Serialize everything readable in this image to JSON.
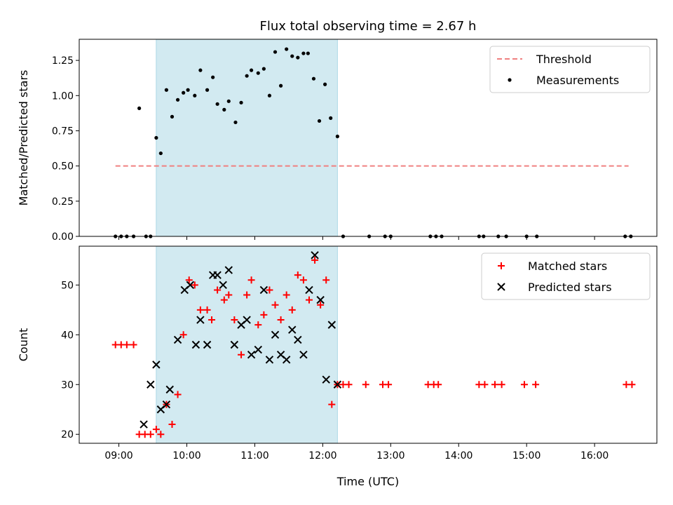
{
  "title": "Flux total observing time = 2.67 h",
  "colors": {
    "threshold": "#f08080",
    "shade": "#add8e6",
    "measurement": "#000000",
    "matched": "#ff0000",
    "predicted": "#000000"
  },
  "chart_data": [
    {
      "type": "scatter",
      "ylabel": "Matched/Predicted stars",
      "xlabel": "",
      "xlim": [
        "08:25",
        "16:55"
      ],
      "ylim": [
        0,
        1.4
      ],
      "yticks": [
        0,
        0.25,
        0.5,
        0.75,
        1.0,
        1.25
      ],
      "ytick_labels": [
        "0.00",
        "0.25",
        "0.50",
        "0.75",
        "1.00",
        "1.25"
      ],
      "shaded_interval": [
        "09:33",
        "12:13"
      ],
      "threshold": {
        "name": "Threshold",
        "y": 0.5,
        "x_start": "08:57",
        "x_end": "16:30"
      },
      "legend": {
        "placement": "top-right",
        "entries": [
          "Threshold",
          "Measurements"
        ]
      },
      "series": [
        {
          "name": "Measurements",
          "x": [
            "08:57",
            "09:02",
            "09:07",
            "09:13",
            "09:24",
            "09:28",
            "09:18",
            "09:33",
            "09:37",
            "09:42",
            "09:47",
            "09:52",
            "09:57",
            "10:01",
            "10:07",
            "10:12",
            "10:18",
            "10:23",
            "10:27",
            "10:33",
            "10:37",
            "10:43",
            "10:48",
            "10:53",
            "10:57",
            "11:03",
            "11:08",
            "11:13",
            "11:18",
            "11:23",
            "11:28",
            "11:33",
            "11:38",
            "11:43",
            "11:47",
            "11:52",
            "11:57",
            "12:02",
            "12:07",
            "12:13",
            "12:18",
            "12:41",
            "12:55",
            "13:00",
            "13:35",
            "13:40",
            "13:45",
            "14:18",
            "14:22",
            "14:35",
            "14:42",
            "15:00",
            "15:09",
            "16:27",
            "16:32"
          ],
          "y": [
            0,
            0,
            0,
            0,
            0,
            0,
            0.91,
            0.7,
            0.59,
            1.04,
            0.85,
            0.97,
            1.02,
            1.04,
            1.0,
            1.18,
            1.04,
            1.13,
            0.94,
            0.9,
            0.96,
            0.81,
            0.95,
            1.14,
            1.18,
            1.16,
            1.19,
            1.0,
            1.31,
            1.07,
            1.33,
            1.28,
            1.27,
            1.3,
            1.3,
            1.12,
            0.82,
            1.08,
            0.84,
            0.71,
            0,
            0,
            0,
            0,
            0,
            0,
            0,
            0,
            0,
            0,
            0,
            0,
            0,
            0,
            0
          ]
        }
      ]
    },
    {
      "type": "scatter",
      "ylabel": "Count",
      "xlabel": "Time (UTC)",
      "xlim": [
        "08:25",
        "16:55"
      ],
      "ylim": [
        18.2,
        57.8
      ],
      "yticks": [
        20,
        30,
        40,
        50
      ],
      "ytick_labels": [
        "20",
        "30",
        "40",
        "50"
      ],
      "xticks": [
        "09:00",
        "10:00",
        "11:00",
        "12:00",
        "13:00",
        "14:00",
        "15:00",
        "16:00"
      ],
      "xtick_labels": [
        "09:00",
        "10:00",
        "11:00",
        "12:00",
        "13:00",
        "14:00",
        "15:00",
        "16:00"
      ],
      "shaded_interval": [
        "09:33",
        "12:13"
      ],
      "legend": {
        "placement": "top-right",
        "entries": [
          "Matched stars",
          "Predicted stars"
        ]
      },
      "series": [
        {
          "name": "Matched stars",
          "x": [
            "08:57",
            "09:02",
            "09:07",
            "09:13",
            "09:18",
            "09:23",
            "09:28",
            "09:33",
            "09:37",
            "09:42",
            "09:47",
            "09:52",
            "09:57",
            "10:02",
            "10:07",
            "10:12",
            "10:18",
            "10:22",
            "10:27",
            "10:33",
            "10:37",
            "10:42",
            "10:48",
            "10:53",
            "10:57",
            "11:03",
            "11:08",
            "11:13",
            "11:18",
            "11:23",
            "11:28",
            "11:33",
            "11:38",
            "11:43",
            "11:48",
            "11:53",
            "11:58",
            "12:03",
            "12:08",
            "12:13",
            "12:18",
            "12:23",
            "12:38",
            "12:53",
            "12:58",
            "13:33",
            "13:38",
            "13:42",
            "14:18",
            "14:23",
            "14:32",
            "14:38",
            "14:58",
            "15:08",
            "16:28",
            "16:33"
          ],
          "y": [
            38,
            38,
            38,
            38,
            20,
            20,
            20,
            21,
            20,
            26,
            22,
            28,
            40,
            51,
            50,
            45,
            45,
            43,
            49,
            47,
            48,
            43,
            36,
            48,
            51,
            42,
            44,
            49,
            46,
            43,
            48,
            45,
            52,
            51,
            47,
            55,
            46,
            51,
            26,
            30,
            30,
            30,
            30,
            30,
            30,
            30,
            30,
            30,
            30,
            30,
            30,
            30,
            30,
            30,
            30,
            30
          ]
        },
        {
          "name": "Predicted stars",
          "x": [
            "09:22",
            "09:28",
            "09:33",
            "09:37",
            "09:42",
            "09:45",
            "09:52",
            "09:58",
            "10:03",
            "10:08",
            "10:12",
            "10:18",
            "10:23",
            "10:27",
            "10:32",
            "10:37",
            "10:42",
            "10:48",
            "10:53",
            "10:57",
            "11:03",
            "11:08",
            "11:13",
            "11:18",
            "11:23",
            "11:28",
            "11:33",
            "11:38",
            "11:43",
            "11:48",
            "11:53",
            "11:58",
            "12:03",
            "12:08",
            "12:13"
          ],
          "y": [
            22,
            30,
            34,
            25,
            26,
            29,
            39,
            49,
            50,
            38,
            43,
            38,
            52,
            52,
            50,
            53,
            38,
            42,
            43,
            36,
            37,
            49,
            35,
            40,
            36,
            35,
            41,
            39,
            36,
            49,
            56,
            47,
            31,
            42,
            30
          ]
        }
      ]
    }
  ]
}
